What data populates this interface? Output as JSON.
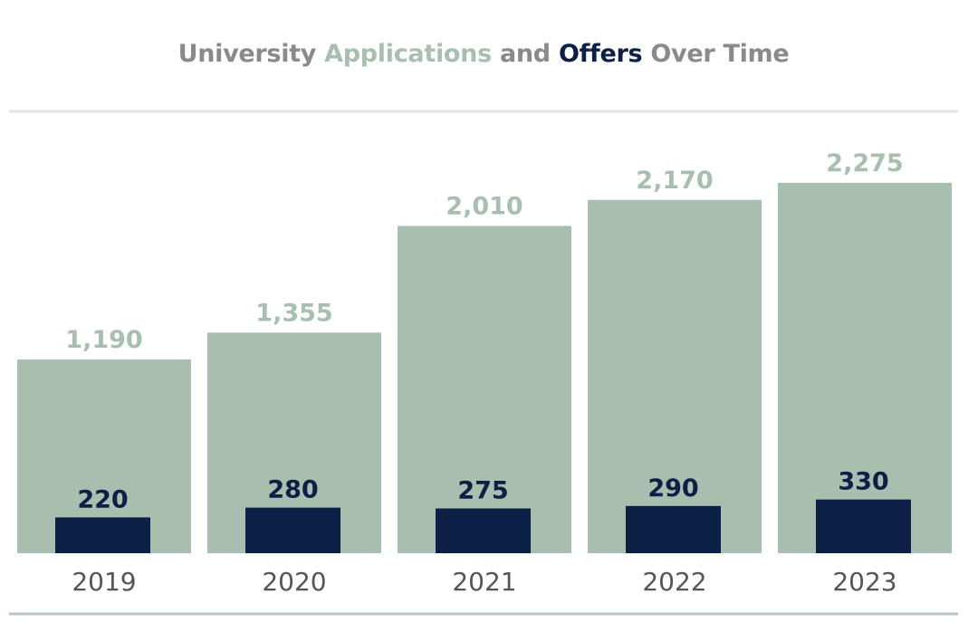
{
  "title": {
    "part1": "University ",
    "part2": "Applications",
    "part3": " and ",
    "part4": "Offers",
    "part5": " Over Time"
  },
  "colors": {
    "applications": "#a8bfb0",
    "offers": "#0c1f45",
    "title_gray": "#8a8a8a",
    "rule": "#e4e4e4",
    "bottom_rule": "#b7c9bd",
    "axis_text": "#555555"
  },
  "chart_data": {
    "type": "bar",
    "categories": [
      "2019",
      "2020",
      "2021",
      "2022",
      "2023"
    ],
    "series": [
      {
        "name": "Applications",
        "values": [
          1190,
          1355,
          2010,
          2170,
          2275
        ],
        "labels": [
          "1,190",
          "1,355",
          "2,010",
          "2,170",
          "2,275"
        ]
      },
      {
        "name": "Offers",
        "values": [
          220,
          280,
          275,
          290,
          330
        ],
        "labels": [
          "220",
          "280",
          "275",
          "290",
          "330"
        ]
      }
    ],
    "ylim": [
      0,
      2400
    ],
    "grid": false,
    "legend": "none (series named by colored words in title)"
  }
}
